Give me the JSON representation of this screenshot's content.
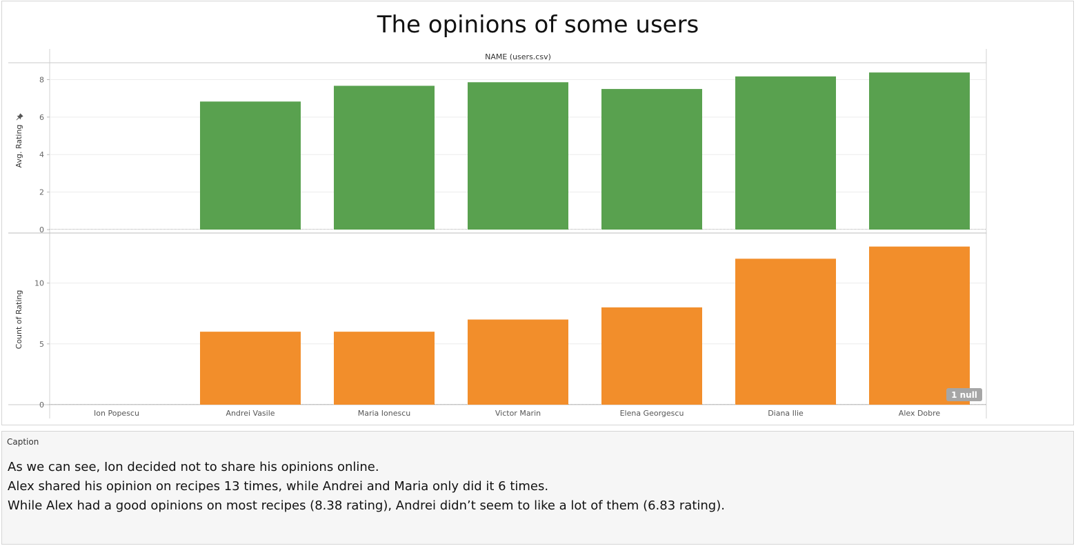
{
  "title": "The opinions of some users",
  "chart_data": [
    {
      "type": "bar",
      "header": "NAME (users.csv)",
      "ylabel": "Avg. Rating",
      "categories": [
        "Ion Popescu",
        "Andrei Vasile",
        "Maria Ionescu",
        "Victor Marin",
        "Elena Georgescu",
        "Diana Ilie",
        "Alex Dobre"
      ],
      "values": [
        null,
        6.83,
        7.67,
        7.86,
        7.5,
        8.17,
        8.38
      ],
      "ylim": [
        0,
        8.9
      ],
      "yticks": [
        0,
        2,
        4,
        6,
        8
      ],
      "color": "#59a14f",
      "grid": true
    },
    {
      "type": "bar",
      "ylabel": "Count of Rating",
      "categories": [
        "Ion Popescu",
        "Andrei Vasile",
        "Maria Ionescu",
        "Victor Marin",
        "Elena Georgescu",
        "Diana Ilie",
        "Alex Dobre"
      ],
      "values": [
        null,
        6,
        6,
        7,
        8,
        12,
        13
      ],
      "ylim": [
        0,
        14
      ],
      "yticks": [
        0,
        5,
        10
      ],
      "color": "#f28e2b",
      "grid": true,
      "null_indicator": "1 null"
    }
  ],
  "caption": {
    "header": "Caption",
    "lines": [
      "As we can see, Ion decided not to share his opinions online.",
      "Alex shared his opinion on recipes 13 times, while Andrei and Maria only did it 6 times.",
      "While Alex had a good opinions on most recipes (8.38 rating), Andrei didn’t seem to like a lot of them (6.83 rating)."
    ]
  },
  "icons": {
    "pin": "pin-icon"
  }
}
